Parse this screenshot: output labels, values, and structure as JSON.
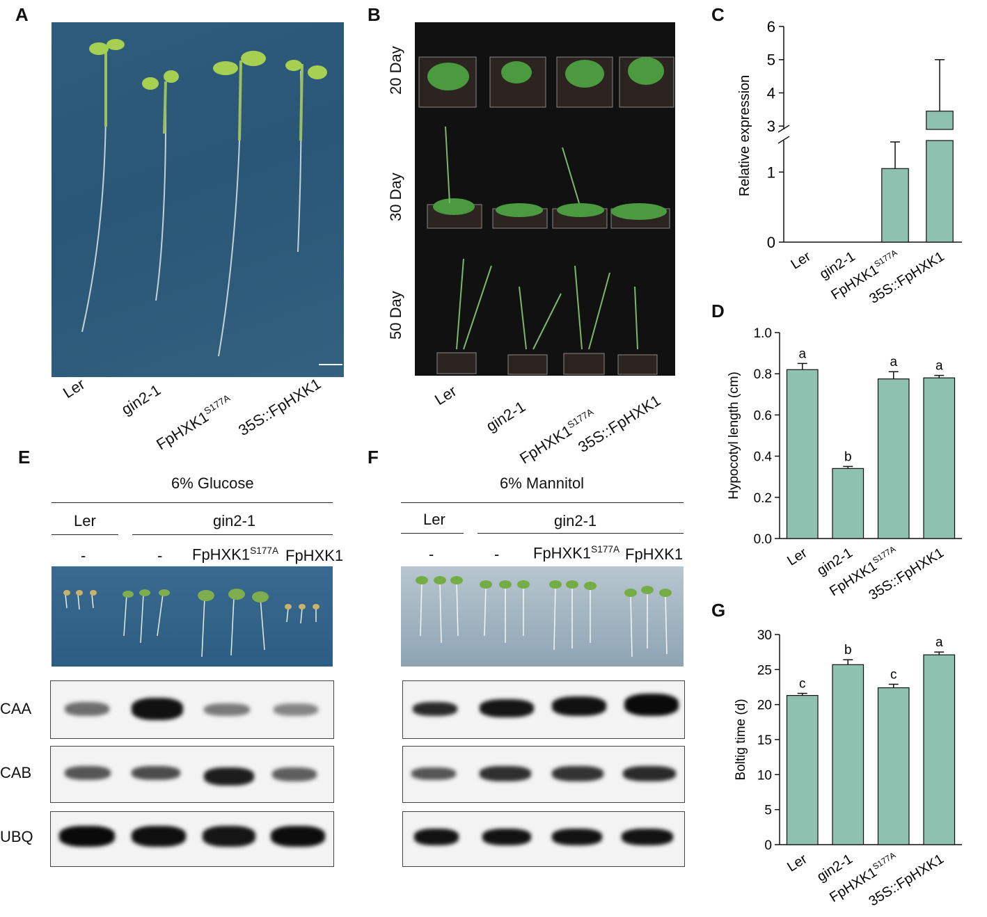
{
  "panels": {
    "A": {
      "label": "A",
      "genotypes": [
        "Ler",
        "gin2-1",
        "FpHXK1",
        "35S::FpHXK1"
      ],
      "sup": "S177A"
    },
    "B": {
      "label": "B",
      "days": [
        "20 Day",
        "30 Day",
        "50 Day"
      ],
      "genotypes": [
        "Ler",
        "gin2-1",
        "FpHXK1",
        "35S::FpHXK1"
      ],
      "sup": "S177A"
    },
    "E": {
      "label": "E",
      "treatment": "6% Glucose",
      "group1": "Ler",
      "group2": "gin2-1",
      "lanes": [
        "-",
        "-",
        "FpHXK1",
        "FpHXK1"
      ],
      "lane_sup": "S177A",
      "rows": [
        "CAA",
        "CAB",
        "UBQ"
      ]
    },
    "F": {
      "label": "F",
      "treatment": "6% Mannitol",
      "group1": "Ler",
      "group2": "gin2-1",
      "lanes": [
        "-",
        "-",
        "FpHXK1",
        "FpHXK1"
      ],
      "lane_sup": "S177A"
    }
  },
  "chart_data": [
    {
      "panel": "C",
      "type": "bar",
      "categories": [
        "Ler",
        "gin2-1",
        "FpHXK1",
        "35S::FpHXK1"
      ],
      "category_sup": [
        "",
        "",
        "S177A",
        ""
      ],
      "values": [
        0,
        0,
        1.05,
        3.45
      ],
      "errors": [
        0,
        0,
        0.38,
        1.55
      ],
      "ylabel": "Relative expression",
      "yticks": [
        0,
        1,
        3,
        4,
        5,
        6
      ],
      "broken_axis": true,
      "break_between": [
        1.45,
        2.9
      ],
      "ylim": [
        0,
        6
      ],
      "bar_color": "#8fc1b0"
    },
    {
      "panel": "D",
      "type": "bar",
      "categories": [
        "Ler",
        "gin2-1",
        "FpHXK1",
        "35S::FpHXK1"
      ],
      "category_sup": [
        "",
        "",
        "S177A",
        ""
      ],
      "values": [
        0.82,
        0.34,
        0.775,
        0.78
      ],
      "errors": [
        0.03,
        0.01,
        0.035,
        0.012
      ],
      "letters": [
        "a",
        "b",
        "a",
        "a"
      ],
      "ylabel": "Hypocotyl length (cm)",
      "yticks": [
        "0.0",
        "0.2",
        "0.4",
        "0.6",
        "0.8",
        "1.0"
      ],
      "ylim": [
        0,
        1.0
      ],
      "bar_color": "#8fc1b0"
    },
    {
      "panel": "G",
      "type": "bar",
      "categories": [
        "Ler",
        "gin2-1",
        "FpHXK1",
        "35S::FpHXK1"
      ],
      "category_sup": [
        "",
        "",
        "S177A",
        ""
      ],
      "values": [
        21.3,
        25.7,
        22.4,
        27.1
      ],
      "errors": [
        0.3,
        0.7,
        0.5,
        0.4
      ],
      "letters": [
        "c",
        "b",
        "c",
        "a"
      ],
      "ylabel": "Boltig time (d)",
      "yticks": [
        0,
        5,
        10,
        15,
        20,
        25,
        30
      ],
      "ylim": [
        0,
        30
      ],
      "bar_color": "#8fc1b0"
    }
  ]
}
